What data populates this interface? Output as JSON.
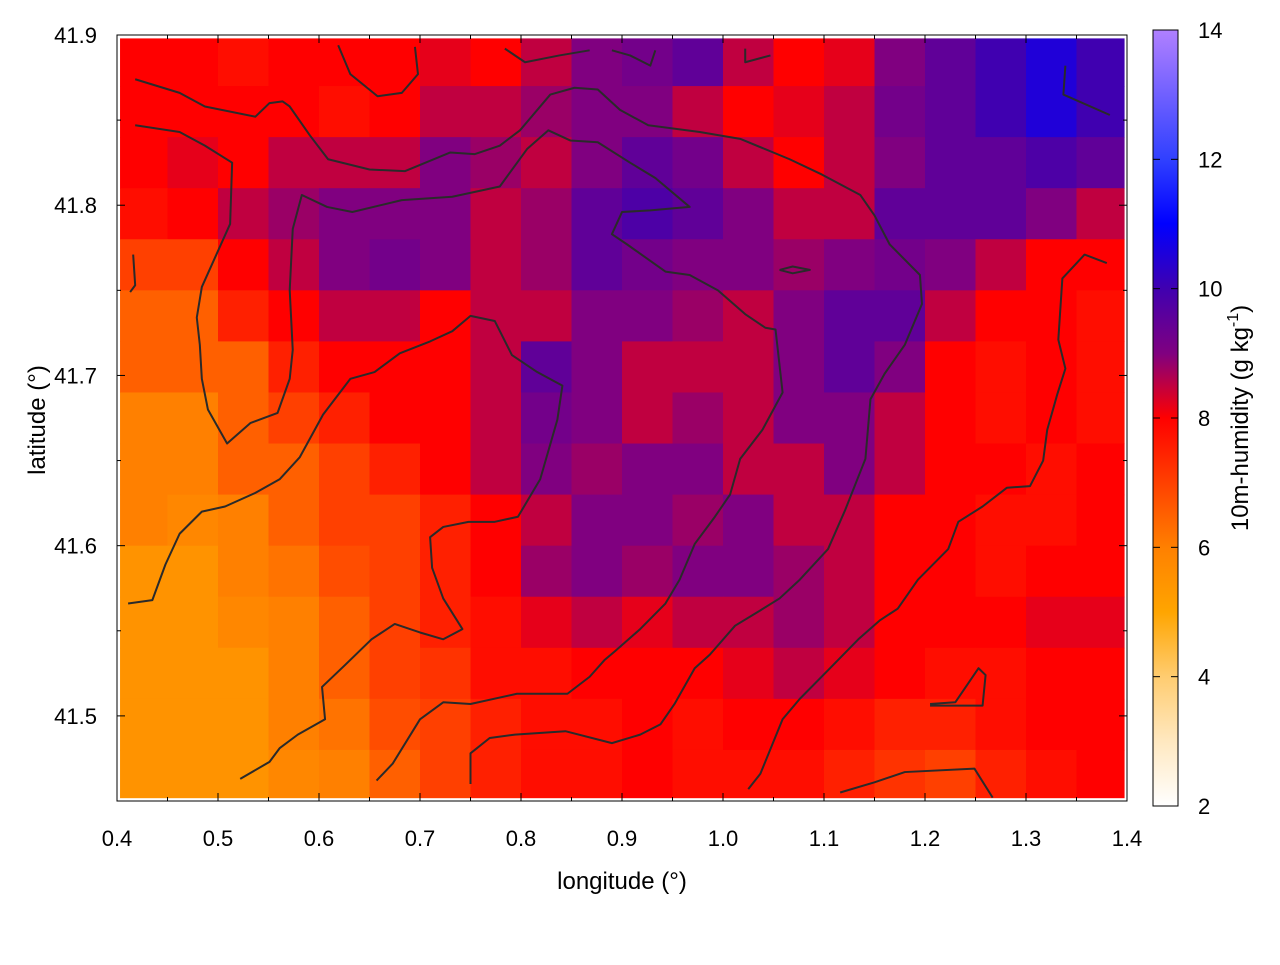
{
  "chart_data": {
    "type": "heatmap",
    "xlabel": "longitude (°)",
    "ylabel": "latitude (°)",
    "colorbar": {
      "label_main": "10m-humidity (g kg",
      "label_sup": "-1",
      "label_end": ")",
      "range": [
        2,
        14
      ],
      "ticks": [
        "2",
        "4",
        "6",
        "8",
        "10",
        "12",
        "14"
      ],
      "stops": [
        [
          2,
          "#ffffff"
        ],
        [
          3,
          "#ffe8c0"
        ],
        [
          4,
          "#ffcc70"
        ],
        [
          5,
          "#ffa500"
        ],
        [
          6,
          "#ff8000"
        ],
        [
          7,
          "#ff4000"
        ],
        [
          8,
          "#ff0000"
        ],
        [
          8.5,
          "#c00040"
        ],
        [
          9,
          "#800080"
        ],
        [
          10,
          "#4000b0"
        ],
        [
          11,
          "#0000ff"
        ],
        [
          12,
          "#3040ff"
        ],
        [
          14,
          "#b080ff"
        ]
      ]
    },
    "xlim": [
      0.4,
      1.4
    ],
    "ylim": [
      41.45,
      41.9
    ],
    "xticks": [
      "0.4",
      "0.5",
      "0.6",
      "0.7",
      "0.8",
      "0.9",
      "1.0",
      "1.1",
      "1.2",
      "1.3",
      "1.4"
    ],
    "yticks": [
      "41.5",
      "41.6",
      "41.7",
      "41.8",
      "41.9"
    ],
    "x": [
      0.425,
      0.475,
      0.525,
      0.575,
      0.625,
      0.675,
      0.725,
      0.775,
      0.825,
      0.875,
      0.925,
      0.975,
      1.025,
      1.075,
      1.125,
      1.175,
      1.225,
      1.275,
      1.325,
      1.375
    ],
    "y": [
      41.885,
      41.855,
      41.825,
      41.795,
      41.765,
      41.735,
      41.705,
      41.675,
      41.645,
      41.615,
      41.585,
      41.555,
      41.525,
      41.495,
      41.465
    ],
    "z": [
      [
        8,
        8,
        7.8,
        8,
        8,
        8,
        8.2,
        8,
        8.5,
        9,
        9.2,
        9.5,
        8.5,
        8,
        8.2,
        9,
        9.5,
        10,
        10.5,
        10
      ],
      [
        8,
        8,
        8,
        8,
        7.8,
        8,
        8.5,
        8.5,
        8.8,
        9,
        9,
        8.5,
        8,
        8.2,
        8.5,
        9.2,
        9.5,
        10,
        10.5,
        10
      ],
      [
        8,
        8.2,
        8,
        8.5,
        8.5,
        8.5,
        9,
        8.8,
        8.5,
        9,
        9.5,
        9.2,
        8.5,
        8,
        8.5,
        9,
        9.5,
        9.5,
        9.8,
        9.5
      ],
      [
        7.8,
        8,
        8.5,
        8.8,
        9,
        9,
        9,
        8.5,
        8.8,
        9.5,
        9.8,
        9.5,
        9,
        8.5,
        8.5,
        9.5,
        9.5,
        9.5,
        9,
        8.5
      ],
      [
        7,
        7,
        8,
        8.5,
        9,
        9.2,
        9,
        8.5,
        8.8,
        9.5,
        9.2,
        9,
        9,
        8.8,
        9,
        9.2,
        9,
        8.5,
        8,
        8
      ],
      [
        6.5,
        6.5,
        7.5,
        8,
        8.5,
        8.5,
        8,
        8.5,
        8.5,
        9,
        9,
        8.8,
        8.5,
        9,
        9.5,
        9.5,
        8.5,
        8,
        8,
        7.8
      ],
      [
        6.5,
        6.5,
        6.5,
        7.5,
        8,
        8,
        8,
        8.5,
        9.5,
        9,
        8.5,
        8.5,
        8.5,
        9,
        9.5,
        9,
        8,
        7.8,
        8,
        7.8
      ],
      [
        6,
        6,
        6.5,
        7,
        7.5,
        8,
        8,
        8.5,
        9.2,
        9,
        8.5,
        8.8,
        8.5,
        9,
        9,
        8.5,
        8,
        7.8,
        8,
        7.8
      ],
      [
        6,
        6,
        6.5,
        6.5,
        7,
        7.5,
        8,
        8.5,
        9,
        8.8,
        9,
        9,
        8.5,
        8.5,
        9,
        8.5,
        8,
        8,
        7.8,
        8
      ],
      [
        6,
        5.8,
        6,
        6.5,
        7,
        7,
        7.5,
        8,
        8.5,
        9,
        9,
        8.8,
        9,
        8.5,
        8.5,
        8,
        8,
        7.8,
        7.8,
        8
      ],
      [
        5.5,
        5.5,
        6,
        6.2,
        6.8,
        7,
        7.5,
        8,
        8.8,
        9,
        8.8,
        9,
        9,
        8.8,
        8.5,
        8,
        8,
        7.8,
        8,
        8
      ],
      [
        5.5,
        5.5,
        5.8,
        6,
        6.5,
        7,
        7.5,
        7.8,
        8.2,
        8.5,
        8.2,
        8.5,
        8.5,
        8.8,
        8.5,
        8,
        8,
        8,
        8.2,
        8.2
      ],
      [
        5.5,
        5.5,
        5.5,
        6,
        6.5,
        7,
        7.2,
        7.8,
        7.8,
        8,
        8,
        8,
        8.2,
        8.5,
        8.2,
        8,
        7.8,
        7.8,
        8,
        8
      ],
      [
        5.5,
        5.5,
        5.5,
        6,
        6.2,
        6.8,
        7,
        7.5,
        7.8,
        7.8,
        8,
        7.8,
        8,
        8,
        7.8,
        7.5,
        7.5,
        7.8,
        8,
        8
      ],
      [
        5.5,
        5.5,
        5.5,
        5.8,
        6,
        6.5,
        7,
        7.5,
        7.8,
        7.8,
        8,
        7.8,
        7.8,
        7.8,
        7.5,
        7.2,
        7,
        7.5,
        7.8,
        8
      ]
    ],
    "contour_color": "#2a2a2a",
    "contours": [
      [
        [
          0.418,
          41.874
        ],
        [
          0.462,
          41.866
        ],
        [
          0.487,
          41.858
        ],
        [
          0.537,
          41.852
        ],
        [
          0.551,
          41.86
        ],
        [
          0.564,
          41.861
        ],
        [
          0.571,
          41.858
        ],
        [
          0.591,
          41.841
        ],
        [
          0.609,
          41.827
        ],
        [
          0.65,
          41.821
        ],
        [
          0.685,
          41.82
        ],
        [
          0.73,
          41.831
        ],
        [
          0.754,
          41.83
        ],
        [
          0.779,
          41.835
        ],
        [
          0.799,
          41.844
        ],
        [
          0.829,
          41.865
        ],
        [
          0.853,
          41.869
        ],
        [
          0.876,
          41.868
        ],
        [
          0.898,
          41.856
        ],
        [
          0.926,
          41.847
        ],
        [
          0.977,
          41.843
        ],
        [
          1.017,
          41.839
        ],
        [
          1.066,
          41.827
        ],
        [
          1.098,
          41.818
        ],
        [
          1.136,
          41.806
        ],
        [
          1.15,
          41.794
        ],
        [
          1.165,
          41.777
        ],
        [
          1.195,
          41.759
        ],
        [
          1.197,
          41.742
        ],
        [
          1.18,
          41.718
        ],
        [
          1.16,
          41.701
        ],
        [
          1.146,
          41.686
        ],
        [
          1.141,
          41.651
        ],
        [
          1.121,
          41.621
        ],
        [
          1.104,
          41.598
        ],
        [
          1.076,
          41.58
        ],
        [
          1.056,
          41.569
        ],
        [
          1.037,
          41.562
        ],
        [
          1.012,
          41.553
        ],
        [
          0.987,
          41.536
        ],
        [
          0.972,
          41.528
        ],
        [
          0.952,
          41.507
        ],
        [
          0.938,
          41.495
        ],
        [
          0.918,
          41.489
        ],
        [
          0.89,
          41.484
        ],
        [
          0.844,
          41.491
        ],
        [
          0.794,
          41.489
        ],
        [
          0.769,
          41.487
        ],
        [
          0.75,
          41.478
        ],
        [
          0.75,
          41.46
        ]
      ],
      [
        [
          0.418,
          41.847
        ],
        [
          0.462,
          41.843
        ],
        [
          0.487,
          41.835
        ],
        [
          0.514,
          41.825
        ],
        [
          0.512,
          41.789
        ],
        [
          0.484,
          41.752
        ],
        [
          0.479,
          41.734
        ],
        [
          0.482,
          41.718
        ],
        [
          0.484,
          41.698
        ],
        [
          0.49,
          41.68
        ],
        [
          0.509,
          41.66
        ],
        [
          0.532,
          41.672
        ],
        [
          0.559,
          41.678
        ],
        [
          0.571,
          41.698
        ],
        [
          0.574,
          41.715
        ],
        [
          0.571,
          41.75
        ],
        [
          0.574,
          41.786
        ],
        [
          0.583,
          41.806
        ],
        [
          0.608,
          41.799
        ],
        [
          0.633,
          41.796
        ],
        [
          0.682,
          41.803
        ],
        [
          0.732,
          41.805
        ],
        [
          0.779,
          41.811
        ],
        [
          0.806,
          41.833
        ],
        [
          0.827,
          41.844
        ],
        [
          0.849,
          41.838
        ],
        [
          0.876,
          41.837
        ],
        [
          0.908,
          41.825
        ],
        [
          0.933,
          41.816
        ],
        [
          0.967,
          41.799
        ],
        [
          0.928,
          41.797
        ],
        [
          0.9,
          41.796
        ],
        [
          0.89,
          41.783
        ],
        [
          0.905,
          41.777
        ],
        [
          0.943,
          41.761
        ],
        [
          0.967,
          41.759
        ],
        [
          0.995,
          41.75
        ],
        [
          1.022,
          41.736
        ],
        [
          1.042,
          41.728
        ],
        [
          1.052,
          41.727
        ],
        [
          1.059,
          41.69
        ],
        [
          1.039,
          41.668
        ],
        [
          1.017,
          41.651
        ],
        [
          1.007,
          41.63
        ],
        [
          0.992,
          41.617
        ],
        [
          0.972,
          41.601
        ],
        [
          0.957,
          41.58
        ],
        [
          0.943,
          41.566
        ],
        [
          0.918,
          41.551
        ],
        [
          0.893,
          41.538
        ],
        [
          0.883,
          41.533
        ],
        [
          0.868,
          41.523
        ],
        [
          0.846,
          41.513
        ],
        [
          0.796,
          41.513
        ],
        [
          0.75,
          41.507
        ],
        [
          0.723,
          41.508
        ],
        [
          0.7,
          41.498
        ],
        [
          0.673,
          41.472
        ],
        [
          0.657,
          41.462
        ]
      ],
      [
        [
          0.411,
          41.566
        ],
        [
          0.435,
          41.568
        ],
        [
          0.448,
          41.589
        ],
        [
          0.462,
          41.607
        ],
        [
          0.484,
          41.62
        ],
        [
          0.507,
          41.623
        ],
        [
          0.537,
          41.631
        ],
        [
          0.561,
          41.639
        ],
        [
          0.581,
          41.652
        ],
        [
          0.604,
          41.677
        ],
        [
          0.631,
          41.698
        ],
        [
          0.655,
          41.702
        ],
        [
          0.68,
          41.713
        ],
        [
          0.71,
          41.72
        ],
        [
          0.732,
          41.726
        ],
        [
          0.75,
          41.735
        ],
        [
          0.774,
          41.732
        ],
        [
          0.791,
          41.712
        ],
        [
          0.816,
          41.702
        ],
        [
          0.841,
          41.694
        ],
        [
          0.836,
          41.674
        ],
        [
          0.819,
          41.639
        ],
        [
          0.797,
          41.617
        ],
        [
          0.774,
          41.614
        ],
        [
          0.748,
          41.614
        ],
        [
          0.723,
          41.611
        ],
        [
          0.71,
          41.605
        ],
        [
          0.712,
          41.587
        ],
        [
          0.723,
          41.569
        ],
        [
          0.742,
          41.551
        ],
        [
          0.723,
          41.545
        ],
        [
          0.7,
          41.549
        ],
        [
          0.675,
          41.554
        ],
        [
          0.652,
          41.545
        ],
        [
          0.626,
          41.53
        ],
        [
          0.603,
          41.517
        ],
        [
          0.606,
          41.498
        ],
        [
          0.579,
          41.489
        ],
        [
          0.561,
          41.481
        ],
        [
          0.551,
          41.473
        ],
        [
          0.522,
          41.463
        ]
      ],
      [
        [
          1.025,
          41.457
        ],
        [
          1.037,
          41.466
        ],
        [
          1.059,
          41.498
        ],
        [
          1.076,
          41.51
        ],
        [
          1.106,
          41.528
        ],
        [
          1.134,
          41.545
        ],
        [
          1.155,
          41.556
        ],
        [
          1.173,
          41.563
        ],
        [
          1.193,
          41.58
        ],
        [
          1.223,
          41.598
        ],
        [
          1.233,
          41.614
        ],
        [
          1.257,
          41.623
        ],
        [
          1.281,
          41.634
        ],
        [
          1.304,
          41.635
        ],
        [
          1.317,
          41.65
        ],
        [
          1.321,
          41.668
        ],
        [
          1.331,
          41.689
        ],
        [
          1.339,
          41.704
        ],
        [
          1.332,
          41.721
        ],
        [
          1.336,
          41.757
        ],
        [
          1.358,
          41.771
        ],
        [
          1.38,
          41.766
        ]
      ],
      [
        [
          1.339,
          41.882
        ],
        [
          1.337,
          41.865
        ],
        [
          1.383,
          41.853
        ]
      ],
      [
        [
          1.116,
          41.455
        ],
        [
          1.15,
          41.461
        ],
        [
          1.18,
          41.467
        ],
        [
          1.249,
          41.469
        ],
        [
          1.267,
          41.452
        ]
      ],
      [
        [
          1.205,
          41.507
        ],
        [
          1.23,
          41.508
        ],
        [
          1.253,
          41.528
        ],
        [
          1.26,
          41.524
        ],
        [
          1.257,
          41.506
        ],
        [
          1.205,
          41.506
        ]
      ],
      [
        [
          0.619,
          41.894
        ],
        [
          0.631,
          41.877
        ],
        [
          0.658,
          41.864
        ],
        [
          0.682,
          41.866
        ],
        [
          0.698,
          41.877
        ],
        [
          0.695,
          41.893
        ]
      ],
      [
        [
          0.416,
          41.771
        ],
        [
          0.418,
          41.753
        ],
        [
          0.413,
          41.749
        ]
      ],
      [
        [
          1.056,
          41.762
        ],
        [
          1.069,
          41.764
        ],
        [
          1.086,
          41.762
        ],
        [
          1.069,
          41.76
        ],
        [
          1.056,
          41.762
        ]
      ],
      [
        [
          0.784,
          41.892
        ],
        [
          0.804,
          41.884
        ],
        [
          0.838,
          41.888
        ],
        [
          0.868,
          41.891
        ]
      ],
      [
        [
          0.89,
          41.891
        ],
        [
          0.908,
          41.888
        ],
        [
          0.928,
          41.882
        ],
        [
          0.933,
          41.891
        ]
      ],
      [
        [
          1.022,
          41.892
        ],
        [
          1.022,
          41.884
        ],
        [
          1.047,
          41.888
        ]
      ]
    ]
  }
}
